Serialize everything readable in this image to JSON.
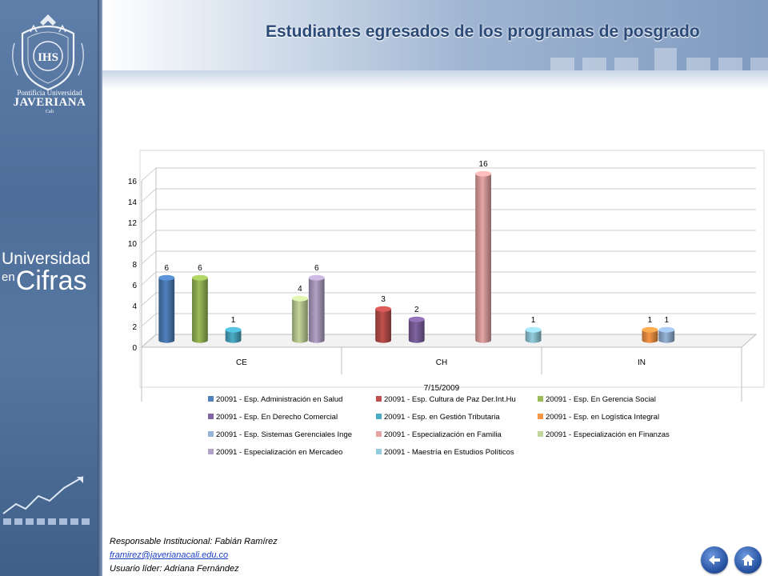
{
  "page": {
    "title": "Estudiantes egresados de los programas de posgrado"
  },
  "sidebar": {
    "logo_initials": "IHS",
    "brand_small": "Pontificia Universidad",
    "brand_big": "JAVERIANA",
    "brand_city": "Cali",
    "tagline_1": "Universidad",
    "tagline_en": "en",
    "tagline_2": "Cifras"
  },
  "footer": {
    "responsible": "Responsable  Institucional: Fabián Ramírez",
    "email": "framirez@javerianacali.edu.co",
    "leader": "Usuario líder: Adriana Fernández"
  },
  "nav": {
    "back_icon": "arrow-left-icon",
    "home_icon": "home-icon"
  },
  "chart_data": {
    "type": "bar",
    "title": "",
    "xlabel": "7/15/2009",
    "ylabel": "",
    "ylim": [
      0,
      16
    ],
    "yticks": [
      "0",
      "2",
      "4",
      "6",
      "8",
      "10",
      "12",
      "14",
      "16"
    ],
    "categories": [
      "CE",
      "CH",
      "IN"
    ],
    "legend_position": "bottom",
    "grid": true,
    "series": [
      {
        "name": "20091 - Esp. Administración en Salud",
        "color": "#4f81bd",
        "values": [
          6,
          null,
          null
        ]
      },
      {
        "name": "20091 - Esp. Cultura de Paz Der.Int.Hu",
        "color": "#c0504d",
        "values": [
          null,
          3,
          null
        ]
      },
      {
        "name": "20091 - Esp. En  Gerencia Social",
        "color": "#9bbb59",
        "values": [
          6,
          null,
          null
        ]
      },
      {
        "name": "20091 - Esp. En Derecho Comercial",
        "color": "#8064a2",
        "values": [
          null,
          2,
          null
        ]
      },
      {
        "name": "20091 - Esp. en Gestión Tributaria",
        "color": "#4bacc6",
        "values": [
          1,
          null,
          null
        ]
      },
      {
        "name": "20091 - Esp. en Logística Integral",
        "color": "#f79646",
        "values": [
          null,
          null,
          1
        ]
      },
      {
        "name": "20091 - Esp. Sistemas Gerenciales Inge",
        "color": "#95b3d7",
        "values": [
          null,
          null,
          1
        ]
      },
      {
        "name": "20091 - Especialización en Familia",
        "color": "#e6a5a5",
        "values": [
          null,
          16,
          null
        ]
      },
      {
        "name": "20091 - Especialización en Finanzas",
        "color": "#c3d69b",
        "values": [
          4,
          null,
          null
        ]
      },
      {
        "name": "20091 - Especialización en Mercadeo",
        "color": "#b3a2c7",
        "values": [
          6,
          null,
          null
        ]
      },
      {
        "name": "20091 - Maestría en Estudios Políticos",
        "color": "#93cddd",
        "values": [
          null,
          1,
          null
        ]
      }
    ]
  }
}
